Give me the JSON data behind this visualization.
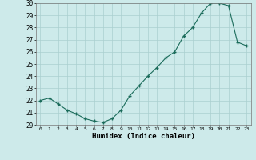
{
  "x": [
    0,
    1,
    2,
    3,
    4,
    5,
    6,
    7,
    8,
    9,
    10,
    11,
    12,
    13,
    14,
    15,
    16,
    17,
    18,
    19,
    20,
    21,
    22,
    23
  ],
  "y": [
    22.0,
    22.2,
    21.7,
    21.2,
    20.9,
    20.5,
    20.3,
    20.2,
    20.5,
    21.2,
    22.4,
    23.2,
    24.0,
    24.7,
    25.5,
    26.0,
    27.3,
    28.0,
    29.2,
    30.0,
    30.0,
    29.8,
    26.8,
    26.5
  ],
  "xlabel": "Humidex (Indice chaleur)",
  "xlim": [
    -0.5,
    23.5
  ],
  "ylim": [
    20,
    30
  ],
  "yticks": [
    20,
    21,
    22,
    23,
    24,
    25,
    26,
    27,
    28,
    29,
    30
  ],
  "xticks": [
    0,
    1,
    2,
    3,
    4,
    5,
    6,
    7,
    8,
    9,
    10,
    11,
    12,
    13,
    14,
    15,
    16,
    17,
    18,
    19,
    20,
    21,
    22,
    23
  ],
  "line_color": "#1a6b5a",
  "marker_color": "#1a6b5a",
  "bg_color": "#cdeaea",
  "grid_color": "#aacfcf"
}
